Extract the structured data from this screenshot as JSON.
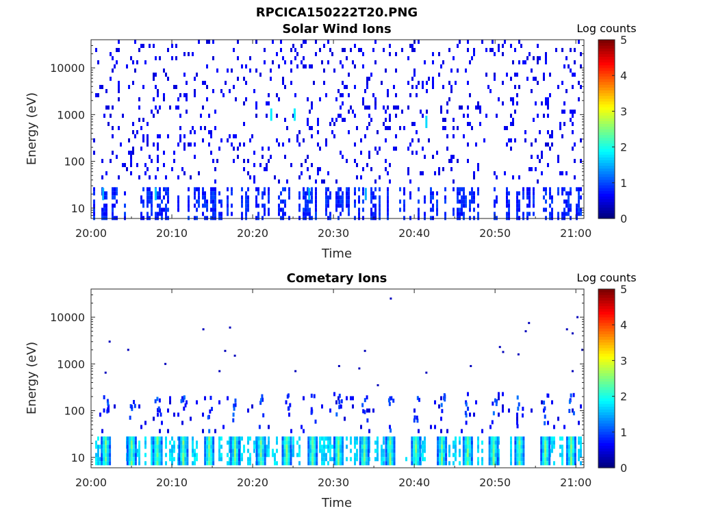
{
  "figure": {
    "title": "RPCICA150222T20.PNG"
  },
  "colormap": {
    "name": "jet",
    "stops": [
      "#00007f",
      "#0000ff",
      "#007fff",
      "#00ffff",
      "#7fff7f",
      "#ffff00",
      "#ff7f00",
      "#ff0000",
      "#7f0000"
    ]
  },
  "chart_data": [
    {
      "type": "heatmap",
      "title": "Solar Wind Ions",
      "xlabel": "Time",
      "ylabel": "Energy (eV)",
      "x_ticks": [
        "20:00",
        "20:10",
        "20:20",
        "20:30",
        "20:40",
        "20:50",
        "21:00"
      ],
      "x_range": [
        "20:00",
        "21:01"
      ],
      "y_scale": "log",
      "y_ticks": [
        "10",
        "100",
        "1000",
        "10000"
      ],
      "y_range": [
        6,
        40000
      ],
      "colorbar": {
        "label": "Log counts",
        "ticks": [
          "0",
          "1",
          "2",
          "3",
          "4",
          "5"
        ],
        "range": [
          0,
          5
        ]
      },
      "background_noise": {
        "energy_range": [
          40,
          40000
        ],
        "level": 0.4
      },
      "low_energy_band": {
        "energy_range": [
          6,
          28
        ],
        "level": 0.6
      },
      "bursts": [
        {
          "time": "20:01.5",
          "energy": 20,
          "log_counts": 1.5
        },
        {
          "time": "20:08.0",
          "energy": 20,
          "log_counts": 1.6
        },
        {
          "time": "20:22.3",
          "energy": 1000,
          "log_counts": 1.8
        },
        {
          "time": "20:25.2",
          "energy": 1000,
          "log_counts": 1.8
        },
        {
          "time": "20:27.0",
          "energy": 20,
          "log_counts": 1.5
        },
        {
          "time": "20:34.0",
          "energy": 20,
          "log_counts": 1.5
        },
        {
          "time": "20:41.5",
          "energy": 700,
          "log_counts": 1.7
        }
      ]
    },
    {
      "type": "heatmap",
      "title": "Cometary Ions",
      "xlabel": "Time",
      "ylabel": "Energy (eV)",
      "x_ticks": [
        "20:00",
        "20:10",
        "20:20",
        "20:30",
        "20:40",
        "20:50",
        "21:00"
      ],
      "x_range": [
        "20:00",
        "21:01"
      ],
      "y_scale": "log",
      "y_ticks": [
        "10",
        "100",
        "1000",
        "10000"
      ],
      "y_range": [
        6,
        40000
      ],
      "colorbar": {
        "label": "Log counts",
        "ticks": [
          "0",
          "1",
          "2",
          "3",
          "4",
          "5"
        ],
        "range": [
          0,
          5
        ]
      },
      "background_noise": {
        "energy_range": [
          40,
          250
        ],
        "level": 0.4
      },
      "low_energy_band": {
        "energy_range": [
          8,
          28
        ],
        "level": 1.5
      },
      "periodic_bursts": {
        "period_minutes": 3.2,
        "start": "20:01.7",
        "energy_range": [
          8,
          28
        ],
        "peak_log_counts": 2.6
      },
      "sparse_points": [
        {
          "time": "20:02.3",
          "energy": 3000
        },
        {
          "time": "20:04.6",
          "energy": 2000
        },
        {
          "time": "20:01.8",
          "energy": 650
        },
        {
          "time": "20:09.2",
          "energy": 1000
        },
        {
          "time": "20:13.9",
          "energy": 5500
        },
        {
          "time": "20:15.9",
          "energy": 700
        },
        {
          "time": "20:16.6",
          "energy": 1900
        },
        {
          "time": "20:17.2",
          "energy": 6000
        },
        {
          "time": "20:17.8",
          "energy": 1500
        },
        {
          "time": "20:25.3",
          "energy": 700
        },
        {
          "time": "20:30.7",
          "energy": 900
        },
        {
          "time": "20:33.2",
          "energy": 800
        },
        {
          "time": "20:33.9",
          "energy": 1900
        },
        {
          "time": "20:35.5",
          "energy": 350
        },
        {
          "time": "20:37.1",
          "energy": 25000
        },
        {
          "time": "20:41.5",
          "energy": 650
        },
        {
          "time": "20:47.0",
          "energy": 900
        },
        {
          "time": "20:50.6",
          "energy": 2300
        },
        {
          "time": "20:51.0",
          "energy": 1800
        },
        {
          "time": "20:52.9",
          "energy": 1600
        },
        {
          "time": "20:53.8",
          "energy": 5000
        },
        {
          "time": "20:54.2",
          "energy": 7500
        },
        {
          "time": "20:58.9",
          "energy": 5500
        },
        {
          "time": "20:59.6",
          "energy": 4500
        },
        {
          "time": "21:00.2",
          "energy": 10000
        },
        {
          "time": "21:00.8",
          "energy": 2000
        },
        {
          "time": "20:59.6",
          "energy": 700
        }
      ]
    }
  ]
}
